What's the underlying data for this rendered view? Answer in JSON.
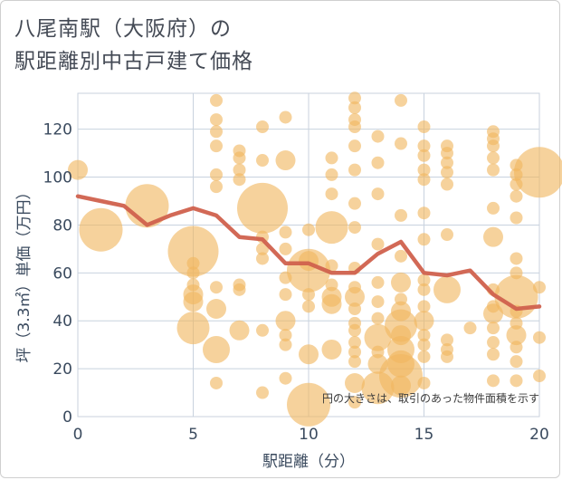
{
  "header": {
    "title_line1": "八尾南駅（大阪府）の",
    "title_line2": "駅距離別中古戸建て価格"
  },
  "chart_data": {
    "type": "scatter",
    "title": "八尾南駅（大阪府）の駅距離別中古戸建て価格",
    "xlabel": "駅距離（分）",
    "ylabel": "坪（3.3㎡）単価（万円）",
    "xlim": [
      0,
      20
    ],
    "ylim": [
      0,
      135
    ],
    "xticks": [
      0,
      5,
      10,
      15,
      20
    ],
    "yticks": [
      0,
      20,
      40,
      60,
      80,
      100,
      120
    ],
    "grid": true,
    "note": "円の大きさは、取引のあった物件面積を示す",
    "colors": {
      "bubble": "#f0b660",
      "line": "#d0614d",
      "grid": "#c8d2de"
    },
    "points": [
      {
        "x": 0,
        "y": 103,
        "s": 2
      },
      {
        "x": 1,
        "y": 78,
        "s": 5
      },
      {
        "x": 3,
        "y": 88,
        "s": 5
      },
      {
        "x": 5,
        "y": 69,
        "s": 6
      },
      {
        "x": 5,
        "y": 64,
        "s": 1
      },
      {
        "x": 5,
        "y": 60,
        "s": 1
      },
      {
        "x": 5,
        "y": 55,
        "s": 1
      },
      {
        "x": 5,
        "y": 51,
        "s": 2
      },
      {
        "x": 5,
        "y": 48,
        "s": 2
      },
      {
        "x": 5,
        "y": 37,
        "s": 4
      },
      {
        "x": 6,
        "y": 132,
        "s": 1
      },
      {
        "x": 6,
        "y": 124,
        "s": 1
      },
      {
        "x": 6,
        "y": 119,
        "s": 1
      },
      {
        "x": 6,
        "y": 113,
        "s": 1
      },
      {
        "x": 6,
        "y": 101,
        "s": 1
      },
      {
        "x": 6,
        "y": 96,
        "s": 1
      },
      {
        "x": 6,
        "y": 54,
        "s": 1
      },
      {
        "x": 6,
        "y": 45,
        "s": 2
      },
      {
        "x": 6,
        "y": 28,
        "s": 3
      },
      {
        "x": 6,
        "y": 14,
        "s": 1
      },
      {
        "x": 7,
        "y": 111,
        "s": 1
      },
      {
        "x": 7,
        "y": 108,
        "s": 1
      },
      {
        "x": 7,
        "y": 103,
        "s": 1
      },
      {
        "x": 7,
        "y": 99,
        "s": 1
      },
      {
        "x": 7,
        "y": 55,
        "s": 1
      },
      {
        "x": 7,
        "y": 53,
        "s": 1
      },
      {
        "x": 7,
        "y": 36,
        "s": 2
      },
      {
        "x": 8,
        "y": 121,
        "s": 1
      },
      {
        "x": 8,
        "y": 107,
        "s": 1
      },
      {
        "x": 8,
        "y": 87,
        "s": 6
      },
      {
        "x": 8,
        "y": 75,
        "s": 1
      },
      {
        "x": 8,
        "y": 70,
        "s": 1
      },
      {
        "x": 8,
        "y": 66,
        "s": 1
      },
      {
        "x": 8,
        "y": 36,
        "s": 1
      },
      {
        "x": 8,
        "y": 10,
        "s": 1
      },
      {
        "x": 9,
        "y": 125,
        "s": 1
      },
      {
        "x": 9,
        "y": 107,
        "s": 2
      },
      {
        "x": 9,
        "y": 77,
        "s": 1
      },
      {
        "x": 9,
        "y": 70,
        "s": 1
      },
      {
        "x": 9,
        "y": 58,
        "s": 1
      },
      {
        "x": 9,
        "y": 51,
        "s": 1
      },
      {
        "x": 9,
        "y": 40,
        "s": 2
      },
      {
        "x": 9,
        "y": 34,
        "s": 1
      },
      {
        "x": 9,
        "y": 30,
        "s": 1
      },
      {
        "x": 9,
        "y": 16,
        "s": 1
      },
      {
        "x": 10,
        "y": 78,
        "s": 1
      },
      {
        "x": 10,
        "y": 65,
        "s": 2
      },
      {
        "x": 10,
        "y": 61,
        "s": 5
      },
      {
        "x": 10,
        "y": 51,
        "s": 1
      },
      {
        "x": 10,
        "y": 46,
        "s": 1
      },
      {
        "x": 10,
        "y": 26,
        "s": 2
      },
      {
        "x": 10,
        "y": 5,
        "s": 5
      },
      {
        "x": 11,
        "y": 108,
        "s": 1
      },
      {
        "x": 11,
        "y": 101,
        "s": 1
      },
      {
        "x": 11,
        "y": 93,
        "s": 1
      },
      {
        "x": 11,
        "y": 79,
        "s": 4
      },
      {
        "x": 11,
        "y": 63,
        "s": 1
      },
      {
        "x": 11,
        "y": 55,
        "s": 1
      },
      {
        "x": 11,
        "y": 50,
        "s": 2
      },
      {
        "x": 11,
        "y": 47,
        "s": 2
      },
      {
        "x": 11,
        "y": 28,
        "s": 2
      },
      {
        "x": 12,
        "y": 133,
        "s": 1
      },
      {
        "x": 12,
        "y": 129,
        "s": 1
      },
      {
        "x": 12,
        "y": 124,
        "s": 1
      },
      {
        "x": 12,
        "y": 121,
        "s": 1
      },
      {
        "x": 12,
        "y": 113,
        "s": 1
      },
      {
        "x": 12,
        "y": 103,
        "s": 1
      },
      {
        "x": 12,
        "y": 89,
        "s": 1
      },
      {
        "x": 12,
        "y": 79,
        "s": 1
      },
      {
        "x": 12,
        "y": 62,
        "s": 1
      },
      {
        "x": 12,
        "y": 54,
        "s": 1
      },
      {
        "x": 12,
        "y": 50,
        "s": 2
      },
      {
        "x": 12,
        "y": 45,
        "s": 1
      },
      {
        "x": 12,
        "y": 39,
        "s": 1
      },
      {
        "x": 12,
        "y": 36,
        "s": 1
      },
      {
        "x": 12,
        "y": 31,
        "s": 1
      },
      {
        "x": 12,
        "y": 27,
        "s": 1
      },
      {
        "x": 12,
        "y": 23,
        "s": 1
      },
      {
        "x": 12,
        "y": 14,
        "s": 2
      },
      {
        "x": 12,
        "y": 6,
        "s": 1
      },
      {
        "x": 13,
        "y": 117,
        "s": 1
      },
      {
        "x": 13,
        "y": 106,
        "s": 1
      },
      {
        "x": 13,
        "y": 93,
        "s": 1
      },
      {
        "x": 13,
        "y": 72,
        "s": 1
      },
      {
        "x": 13,
        "y": 56,
        "s": 1
      },
      {
        "x": 13,
        "y": 48,
        "s": 1
      },
      {
        "x": 13,
        "y": 41,
        "s": 1
      },
      {
        "x": 13,
        "y": 33,
        "s": 3
      },
      {
        "x": 13,
        "y": 27,
        "s": 1
      },
      {
        "x": 13,
        "y": 22,
        "s": 2
      },
      {
        "x": 13,
        "y": 12,
        "s": 4
      },
      {
        "x": 14,
        "y": 132,
        "s": 1
      },
      {
        "x": 14,
        "y": 114,
        "s": 1
      },
      {
        "x": 14,
        "y": 84,
        "s": 1
      },
      {
        "x": 14,
        "y": 67,
        "s": 1
      },
      {
        "x": 14,
        "y": 56,
        "s": 2
      },
      {
        "x": 14,
        "y": 49,
        "s": 1
      },
      {
        "x": 14,
        "y": 44,
        "s": 2
      },
      {
        "x": 14,
        "y": 38,
        "s": 4
      },
      {
        "x": 14,
        "y": 34,
        "s": 2
      },
      {
        "x": 14,
        "y": 28,
        "s": 3
      },
      {
        "x": 14,
        "y": 22,
        "s": 3
      },
      {
        "x": 14,
        "y": 17,
        "s": 5
      },
      {
        "x": 14,
        "y": 13,
        "s": 2
      },
      {
        "x": 15,
        "y": 121,
        "s": 1
      },
      {
        "x": 15,
        "y": 113,
        "s": 1
      },
      {
        "x": 15,
        "y": 109,
        "s": 1
      },
      {
        "x": 15,
        "y": 103,
        "s": 1
      },
      {
        "x": 15,
        "y": 99,
        "s": 1
      },
      {
        "x": 15,
        "y": 85,
        "s": 1
      },
      {
        "x": 15,
        "y": 74,
        "s": 1
      },
      {
        "x": 15,
        "y": 57,
        "s": 1
      },
      {
        "x": 15,
        "y": 53,
        "s": 1
      },
      {
        "x": 15,
        "y": 46,
        "s": 1
      },
      {
        "x": 15,
        "y": 40,
        "s": 2
      },
      {
        "x": 15,
        "y": 34,
        "s": 1
      },
      {
        "x": 15,
        "y": 30,
        "s": 1
      },
      {
        "x": 15,
        "y": 25,
        "s": 1
      },
      {
        "x": 15,
        "y": 14,
        "s": 1
      },
      {
        "x": 16,
        "y": 113,
        "s": 1
      },
      {
        "x": 16,
        "y": 110,
        "s": 1
      },
      {
        "x": 16,
        "y": 106,
        "s": 1
      },
      {
        "x": 16,
        "y": 102,
        "s": 1
      },
      {
        "x": 16,
        "y": 97,
        "s": 1
      },
      {
        "x": 16,
        "y": 76,
        "s": 1
      },
      {
        "x": 16,
        "y": 53,
        "s": 3
      },
      {
        "x": 16,
        "y": 32,
        "s": 1
      },
      {
        "x": 16,
        "y": 28,
        "s": 1
      },
      {
        "x": 16,
        "y": 25,
        "s": 1
      },
      {
        "x": 17,
        "y": 37,
        "s": 1
      },
      {
        "x": 18,
        "y": 119,
        "s": 1
      },
      {
        "x": 18,
        "y": 116,
        "s": 1
      },
      {
        "x": 18,
        "y": 113,
        "s": 1
      },
      {
        "x": 18,
        "y": 108,
        "s": 1
      },
      {
        "x": 18,
        "y": 103,
        "s": 1
      },
      {
        "x": 18,
        "y": 87,
        "s": 1
      },
      {
        "x": 18,
        "y": 75,
        "s": 2
      },
      {
        "x": 18,
        "y": 53,
        "s": 1
      },
      {
        "x": 18,
        "y": 46,
        "s": 1
      },
      {
        "x": 18,
        "y": 43,
        "s": 2
      },
      {
        "x": 18,
        "y": 37,
        "s": 1
      },
      {
        "x": 18,
        "y": 31,
        "s": 1
      },
      {
        "x": 18,
        "y": 26,
        "s": 1
      },
      {
        "x": 18,
        "y": 15,
        "s": 1
      },
      {
        "x": 19,
        "y": 105,
        "s": 1
      },
      {
        "x": 19,
        "y": 101,
        "s": 1
      },
      {
        "x": 19,
        "y": 97,
        "s": 1
      },
      {
        "x": 19,
        "y": 92,
        "s": 1
      },
      {
        "x": 19,
        "y": 83,
        "s": 1
      },
      {
        "x": 19,
        "y": 66,
        "s": 1
      },
      {
        "x": 19,
        "y": 60,
        "s": 1
      },
      {
        "x": 19,
        "y": 50,
        "s": 5
      },
      {
        "x": 19,
        "y": 44,
        "s": 1
      },
      {
        "x": 19,
        "y": 39,
        "s": 1
      },
      {
        "x": 19,
        "y": 34,
        "s": 2
      },
      {
        "x": 19,
        "y": 29,
        "s": 1
      },
      {
        "x": 19,
        "y": 23,
        "s": 1
      },
      {
        "x": 19,
        "y": 15,
        "s": 1
      },
      {
        "x": 20,
        "y": 102,
        "s": 6
      },
      {
        "x": 20,
        "y": 54,
        "s": 1
      },
      {
        "x": 20,
        "y": 33,
        "s": 1
      },
      {
        "x": 20,
        "y": 17,
        "s": 1
      }
    ],
    "series": [
      {
        "x": [
          0,
          1,
          2,
          3,
          4,
          5,
          6,
          7,
          8,
          9,
          10,
          11,
          12,
          13,
          14,
          15,
          16,
          17,
          18,
          19,
          20
        ],
        "values": [
          92,
          90,
          88,
          80,
          84,
          87,
          84,
          75,
          74,
          64,
          64,
          60,
          60,
          68,
          73,
          60,
          59,
          61,
          51,
          45,
          46
        ]
      }
    ]
  }
}
